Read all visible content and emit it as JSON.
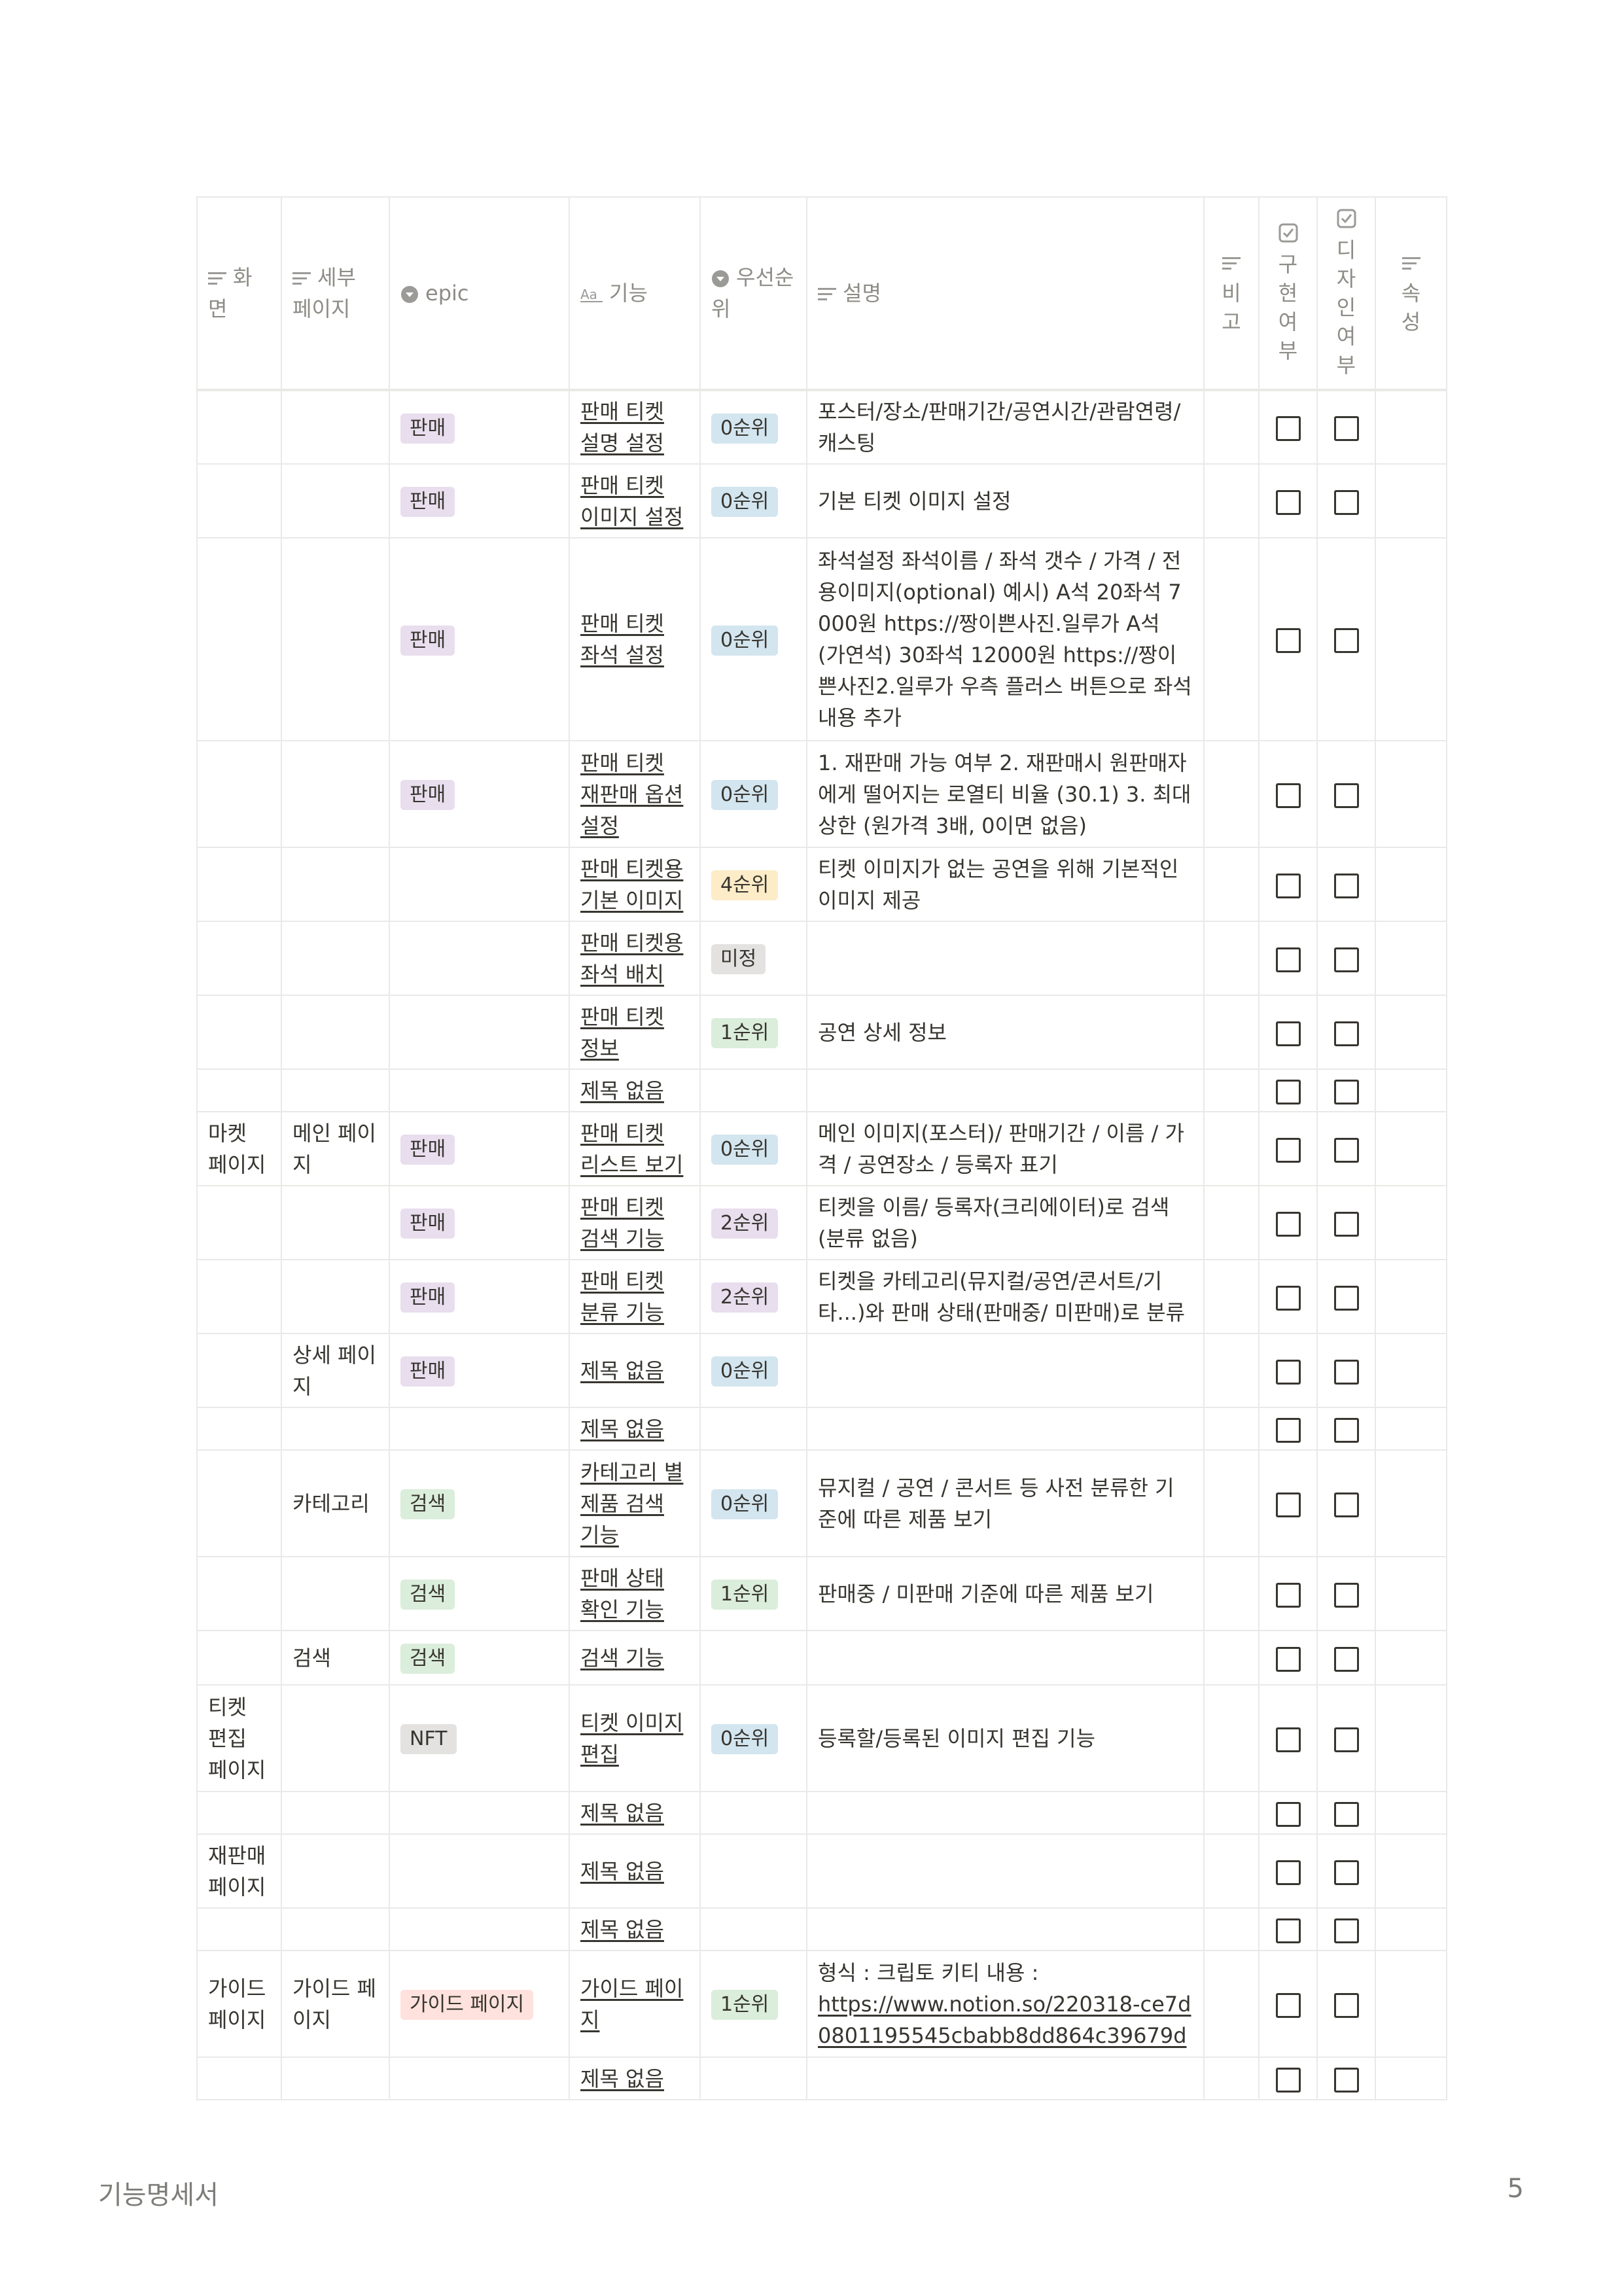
{
  "columns": {
    "screen": "화면",
    "subpage": "세부 페이지",
    "epic": "epic",
    "feature": "기능",
    "priority": "우선순위",
    "desc": "설명",
    "note": "비고",
    "implemented": "구현여부",
    "design": "디자인여부",
    "attr": "속성"
  },
  "rows": [
    {
      "screen": "",
      "subpage": "",
      "epic": "판매",
      "epic_color": "purple",
      "feature": "판매 티켓 설명 설정",
      "priority": "0순위",
      "priority_color": "blue",
      "desc": "포스터/장소/판매기간/공연시간/관람연령/캐스팅"
    },
    {
      "screen": "",
      "subpage": "",
      "epic": "판매",
      "epic_color": "purple",
      "feature": "판매 티켓 이미지 설정",
      "priority": "0순위",
      "priority_color": "blue",
      "desc": "기본 티켓 이미지 설정"
    },
    {
      "screen": "",
      "subpage": "",
      "epic": "판매",
      "epic_color": "purple",
      "feature": "판매 티켓 좌석 설정",
      "priority": "0순위",
      "priority_color": "blue",
      "desc": "좌석설정 좌석이름 / 좌석 갯수 / 가격 / 전용이미지(optional) 예시) A석 20좌석 7000원 https://짱이쁜사진.일루가 A석 (가연석) 30좌석 12000원 https://짱이쁜사진2.일루가 우측 플러스 버튼으로 좌석 내용 추가"
    },
    {
      "screen": "",
      "subpage": "",
      "epic": "판매",
      "epic_color": "purple",
      "feature": "판매 티켓 재판매 옵션 설정",
      "priority": "0순위",
      "priority_color": "blue",
      "desc": "1. 재판매 가능 여부 2. 재판매시 원판매자에게 떨어지는 로열티 비율 (30.1) 3. 최대 상한 (원가격 3배, 0이면 없음)"
    },
    {
      "screen": "",
      "subpage": "",
      "epic": "",
      "epic_color": "",
      "feature": "판매 티켓용 기본 이미지",
      "priority": "4순위",
      "priority_color": "yellow",
      "desc": "티켓 이미지가 없는 공연을 위해 기본적인 이미지 제공"
    },
    {
      "screen": "",
      "subpage": "",
      "epic": "",
      "epic_color": "",
      "feature": "판매 티켓용 좌석 배치",
      "priority": "미정",
      "priority_color": "gray",
      "desc": ""
    },
    {
      "screen": "",
      "subpage": "",
      "epic": "",
      "epic_color": "",
      "feature": "판매 티켓 정보",
      "priority": "1순위",
      "priority_color": "green",
      "desc": "공연 상세 정보"
    },
    {
      "screen": "",
      "subpage": "",
      "epic": "",
      "epic_color": "",
      "feature": "제목 없음",
      "priority": "",
      "priority_color": "",
      "desc": ""
    },
    {
      "screen": "마켓 페이지",
      "subpage": "메인 페이지",
      "epic": "판매",
      "epic_color": "purple",
      "feature": "판매 티켓 리스트 보기",
      "priority": "0순위",
      "priority_color": "blue",
      "desc": "메인 이미지(포스터)/ 판매기간 / 이름 / 가격 / 공연장소 / 등록자 표기"
    },
    {
      "screen": "",
      "subpage": "",
      "epic": "판매",
      "epic_color": "purple",
      "feature": "판매 티켓 검색 기능",
      "priority": "2순위",
      "priority_color": "purple",
      "desc": "티켓을 이름/ 등록자(크리에이터)로 검색 (분류 없음)"
    },
    {
      "screen": "",
      "subpage": "",
      "epic": "판매",
      "epic_color": "purple",
      "feature": "판매 티켓 분류 기능",
      "priority": "2순위",
      "priority_color": "purple",
      "desc": "티켓을 카테고리(뮤지컬/공연/콘서트/기타...)와 판매 상태(판매중/ 미판매)로 분류"
    },
    {
      "screen": "",
      "subpage": "상세 페이지",
      "epic": "판매",
      "epic_color": "purple",
      "feature": "제목 없음",
      "priority": "0순위",
      "priority_color": "blue",
      "desc": ""
    },
    {
      "screen": "",
      "subpage": "",
      "epic": "",
      "epic_color": "",
      "feature": "제목 없음",
      "priority": "",
      "priority_color": "",
      "desc": ""
    },
    {
      "screen": "",
      "subpage": "카테고리",
      "epic": "검색",
      "epic_color": "green",
      "feature": "카테고리 별 제품 검색 기능",
      "priority": "0순위",
      "priority_color": "blue",
      "desc": "뮤지컬 / 공연 / 콘서트 등 사전 분류한 기준에 따른 제품 보기"
    },
    {
      "screen": "",
      "subpage": "",
      "epic": "검색",
      "epic_color": "green",
      "feature": "판매 상태 확인 기능",
      "priority": "1순위",
      "priority_color": "green",
      "desc": "판매중 / 미판매 기준에 따른 제품 보기"
    },
    {
      "screen": "",
      "subpage": "검색",
      "epic": "검색",
      "epic_color": "green",
      "feature": "검색 기능",
      "priority": "",
      "priority_color": "",
      "desc": ""
    },
    {
      "screen": "티켓 편집 페이지",
      "subpage": "",
      "epic": "NFT",
      "epic_color": "gray",
      "feature": "티켓 이미지 편집",
      "priority": "0순위",
      "priority_color": "blue",
      "desc": "등록할/등록된 이미지 편집 기능"
    },
    {
      "screen": "",
      "subpage": "",
      "epic": "",
      "epic_color": "",
      "feature": "제목 없음",
      "priority": "",
      "priority_color": "",
      "desc": ""
    },
    {
      "screen": "재판매 페이지",
      "subpage": "",
      "epic": "",
      "epic_color": "",
      "feature": "제목 없음",
      "priority": "",
      "priority_color": "",
      "desc": ""
    },
    {
      "screen": "",
      "subpage": "",
      "epic": "",
      "epic_color": "",
      "feature": "제목 없음",
      "priority": "",
      "priority_color": "",
      "desc": ""
    },
    {
      "screen": "가이드 페이지",
      "subpage": "가이드 페이지",
      "epic": "가이드 페이지",
      "epic_color": "red",
      "feature": "가이드 페이지",
      "priority": "1순위",
      "priority_color": "green",
      "desc": "형식 : 크립토 키티 내용 :",
      "desc_link": "https://www.notion.so/220318-ce7d0801195545cbabb8dd864c39679d"
    },
    {
      "screen": "",
      "subpage": "",
      "epic": "",
      "epic_color": "",
      "feature": "제목 없음",
      "priority": "",
      "priority_color": "",
      "desc": ""
    }
  ],
  "footer": {
    "doc_title": "기능명세서",
    "page_number": "5"
  }
}
